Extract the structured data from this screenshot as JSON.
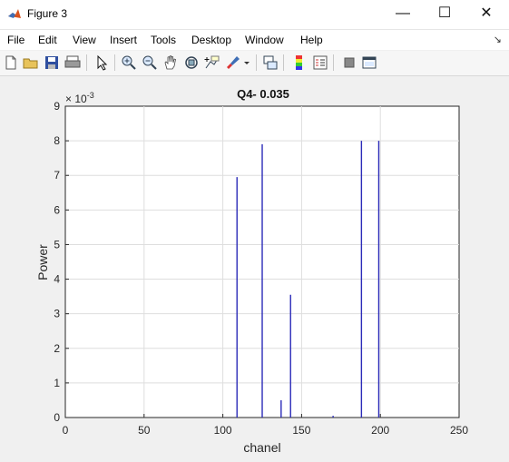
{
  "window": {
    "title": "Figure 3",
    "controls": {
      "minimize": "—",
      "maximize": "☐",
      "close": "✕"
    }
  },
  "menu": {
    "items": [
      "File",
      "Edit",
      "View",
      "Insert",
      "Tools",
      "Desktop",
      "Window",
      "Help"
    ]
  },
  "toolbar": {
    "icons": [
      "new-figure-icon",
      "open-file-icon",
      "save-icon",
      "print-icon",
      "pointer-icon",
      "zoom-in-icon",
      "zoom-out-icon",
      "pan-icon",
      "rotate-3d-icon",
      "data-cursor-icon",
      "brush-icon",
      "brush-dropdown-icon",
      "link-plot-icon",
      "colorbar-icon",
      "legend-icon",
      "hide-plot-tools-icon",
      "show-plot-tools-icon"
    ]
  },
  "chart_data": {
    "type": "bar",
    "title": "Q4- 0.035",
    "xlabel": "chanel",
    "ylabel": "Power",
    "y_exponent": "× 10",
    "y_exponent_power": "-3",
    "xlim": [
      0,
      250
    ],
    "ylim": [
      0,
      9
    ],
    "xticks": [
      "0",
      "50",
      "100",
      "150",
      "200",
      "250"
    ],
    "xtick_values": [
      0,
      50,
      100,
      150,
      200,
      250
    ],
    "yticks": [
      "0",
      "1",
      "2",
      "3",
      "4",
      "5",
      "6",
      "7",
      "8",
      "9"
    ],
    "ytick_values": [
      0,
      1,
      2,
      3,
      4,
      5,
      6,
      7,
      8,
      9
    ],
    "grid": true,
    "line_color": "#2b2bb8",
    "x": [
      109,
      125,
      137,
      143,
      170,
      188,
      199
    ],
    "values": [
      6.95,
      7.9,
      0.5,
      3.55,
      0.05,
      8.0,
      8.0
    ]
  }
}
